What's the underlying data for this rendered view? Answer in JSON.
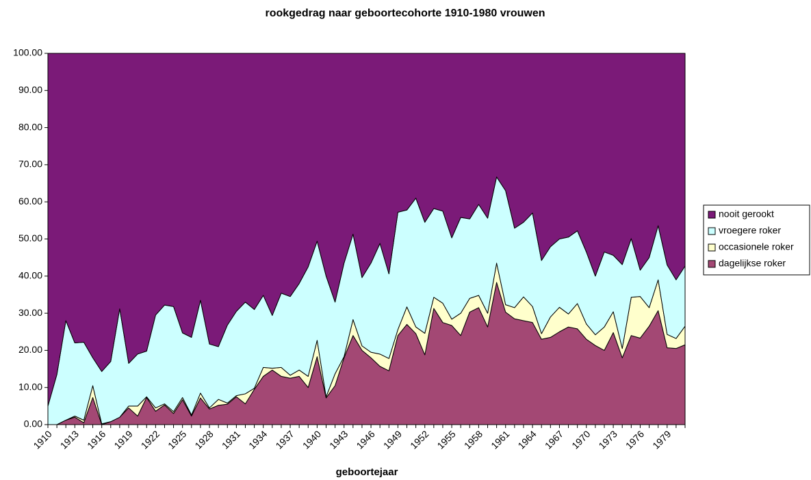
{
  "chart_data": {
    "type": "stacked_area",
    "title": "rookgedrag naar geboortecohorte 1910-1980 vrouwen",
    "x_label": "geboortejaar",
    "categories": [
      "1910",
      null,
      null,
      "1913",
      null,
      null,
      "1916",
      null,
      null,
      "1919",
      null,
      null,
      "1922",
      null,
      null,
      "1925",
      null,
      null,
      "1928",
      null,
      null,
      "1931",
      null,
      null,
      "1934",
      null,
      null,
      "1937",
      null,
      null,
      "1940",
      null,
      null,
      "1943",
      null,
      null,
      "1946",
      null,
      null,
      "1949",
      null,
      null,
      "1952",
      null,
      null,
      "1955",
      null,
      null,
      "1958",
      null,
      null,
      "1961",
      null,
      null,
      "1964",
      null,
      null,
      "1967",
      null,
      null,
      "1970",
      null,
      null,
      "1973",
      null,
      null,
      "1976",
      null,
      null,
      "1979",
      null,
      null
    ],
    "series": [
      {
        "name": "dagelijkse roker",
        "color": "#a34874",
        "values": [
          0,
          0,
          1.2,
          2,
          0.5,
          7.3,
          0,
          0.8,
          2,
          4.5,
          2.3,
          7.3,
          3.6,
          5.3,
          3,
          6.7,
          2.3,
          7.2,
          4.2,
          5.2,
          5.5,
          7.5,
          5.6,
          9.5,
          13,
          14.7,
          13,
          12.5,
          13,
          10,
          18.3,
          7.2,
          10.5,
          18,
          24,
          20,
          18,
          15.7,
          14.5,
          24,
          27,
          24.5,
          18.8,
          31.3,
          27.5,
          26.7,
          24,
          30.3,
          31.5,
          26.3,
          38.3,
          30.3,
          28.5,
          28,
          27.5,
          23,
          23.5,
          25,
          26.3,
          25.8,
          23,
          21.3,
          20,
          24.8,
          18,
          24,
          23.3,
          26.5,
          30.7,
          20.7,
          20.5,
          21.5
        ]
      },
      {
        "name": "occasionele roker",
        "color": "#ffffcc",
        "values": [
          0,
          0,
          0,
          0.3,
          0.7,
          3.2,
          0.2,
          0,
          0,
          0.5,
          2.7,
          0.2,
          0.9,
          0.3,
          0.5,
          0.6,
          0.3,
          1.3,
          0.3,
          1.6,
          0.3,
          0.3,
          2.7,
          0.3,
          2.4,
          0.5,
          2.4,
          0.8,
          1.7,
          3,
          4.4,
          0.3,
          3.2,
          0.3,
          4.3,
          1.2,
          1.5,
          3.3,
          3.3,
          1.6,
          4.7,
          1.8,
          5.8,
          3,
          5.2,
          1.7,
          6,
          3.7,
          3.3,
          3.7,
          5.2,
          2,
          3,
          6.4,
          4.3,
          1.5,
          5.5,
          6.6,
          3.5,
          6.8,
          4.1,
          2.9,
          6.3,
          5.6,
          2.5,
          10.3,
          11.2,
          5,
          8.3,
          3.6,
          2.7,
          5
        ]
      },
      {
        "name": "vroegere roker",
        "color": "#ccffff",
        "values": [
          5,
          13.5,
          26.8,
          19.7,
          21,
          7.5,
          14.1,
          16.2,
          29.2,
          11.5,
          14,
          12.3,
          25,
          26.6,
          28.3,
          17.4,
          20.9,
          25,
          17.2,
          14.2,
          21,
          22.7,
          24.7,
          21.2,
          19.4,
          14.2,
          20,
          21.2,
          23.3,
          29.5,
          26.7,
          32.5,
          19.3,
          25.2,
          23,
          18.4,
          24,
          29.8,
          22.8,
          31.6,
          26.1,
          34.7,
          29.9,
          23.9,
          24.8,
          21.9,
          25.8,
          21.4,
          24.5,
          25.6,
          23.2,
          30.7,
          21.4,
          20.1,
          25.2,
          19.7,
          18.9,
          18.4,
          20.7,
          19.6,
          19.4,
          15.8,
          20.2,
          15.2,
          22.6,
          15.8,
          7.1,
          13.5,
          14.6,
          18.7,
          15.8,
          16.2
        ]
      },
      {
        "name": "nooit gerookt",
        "color": "#7b1a78",
        "values": [
          95,
          86.5,
          72,
          78,
          77.8,
          82,
          85.7,
          83,
          68.8,
          83.5,
          81,
          80.2,
          70.5,
          67.8,
          68.2,
          75.3,
          76.5,
          66.5,
          78.3,
          79,
          73.2,
          69.5,
          67,
          69,
          65.2,
          70.6,
          64.6,
          65.5,
          62,
          57.5,
          50.6,
          60,
          67,
          56.5,
          48.7,
          60.4,
          56.5,
          51.2,
          59.4,
          42.8,
          42.2,
          39,
          45.5,
          41.8,
          42.5,
          49.7,
          44.2,
          44.6,
          40.7,
          44.4,
          33.3,
          37,
          47.1,
          45.5,
          43,
          55.8,
          52.1,
          50,
          49.5,
          47.8,
          53.5,
          60,
          53.5,
          54.4,
          56.9,
          49.9,
          58.4,
          55,
          46.4,
          57,
          61,
          57.3
        ]
      }
    ],
    "ylim": [
      0,
      100
    ],
    "yticks": [
      {
        "value": 0,
        "label": "0.00"
      },
      {
        "value": 10,
        "label": "10.00"
      },
      {
        "value": 20,
        "label": "20.00"
      },
      {
        "value": 30,
        "label": "30.00"
      },
      {
        "value": 40,
        "label": "40.00"
      },
      {
        "value": 50,
        "label": "50.00"
      },
      {
        "value": 60,
        "label": "60.00"
      },
      {
        "value": 70,
        "label": "70.00"
      },
      {
        "value": 80,
        "label": "80.00"
      },
      {
        "value": 90,
        "label": "90.00"
      },
      {
        "value": 100,
        "label": "100.00"
      }
    ],
    "legend": "right"
  }
}
